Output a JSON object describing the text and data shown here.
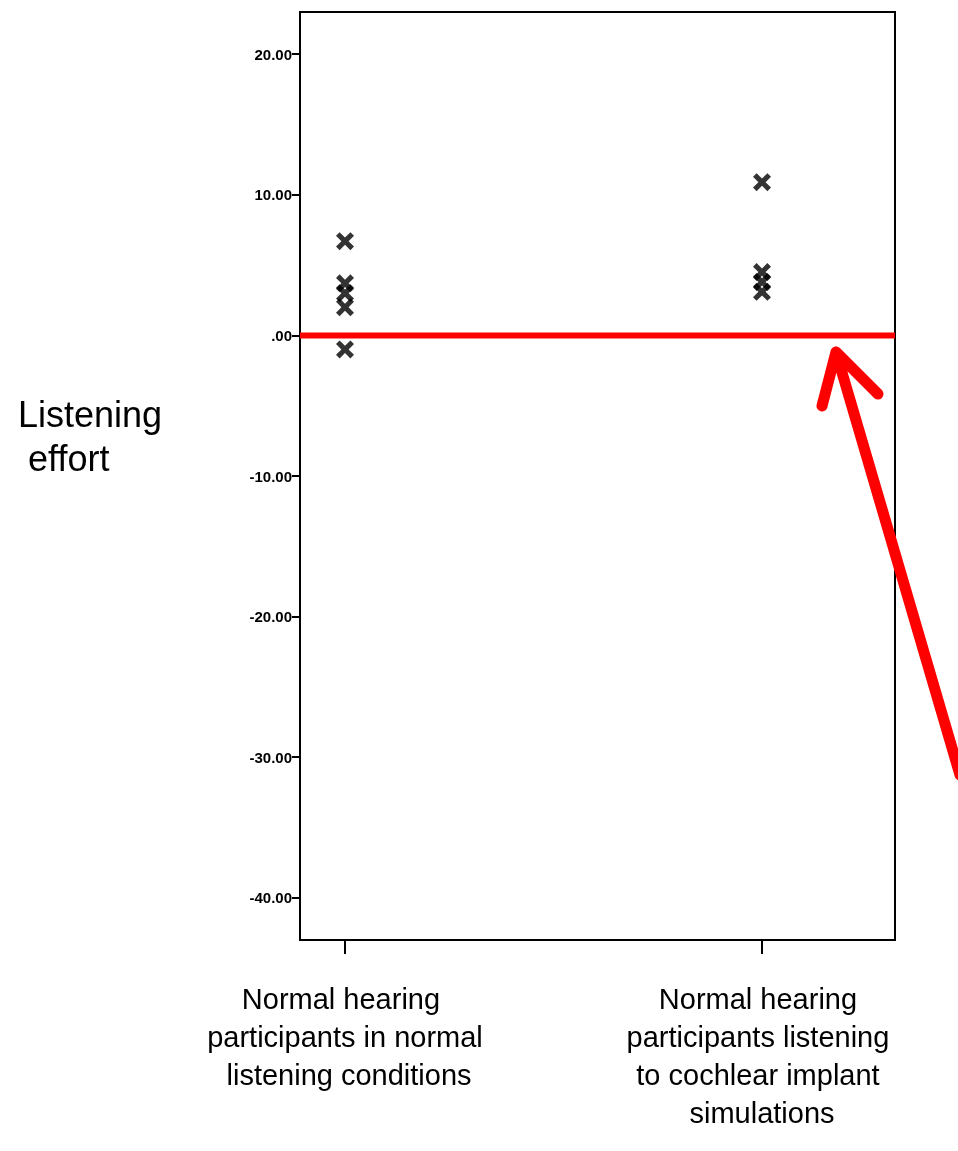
{
  "chart_data": {
    "type": "scatter",
    "ylabel": "Listening effort",
    "categories": [
      "Normal hearing participants in normal listening conditions",
      "Normal hearing participants listening to cochlear implant simulations"
    ],
    "series": [
      {
        "color": "#000000",
        "x": [
          "Normal hearing participants in normal listening conditions",
          "Normal hearing participants in normal listening conditions",
          "Normal hearing participants in normal listening conditions",
          "Normal hearing participants in normal listening conditions",
          "Normal hearing participants in normal listening conditions",
          "Normal hearing participants listening to cochlear implant simulations",
          "Normal hearing participants listening to cochlear implant simulations",
          "Normal hearing participants listening to cochlear implant simulations",
          "Normal hearing participants listening to cochlear implant simulations"
        ],
        "values": [
          6.7,
          3.7,
          3.0,
          2.0,
          -1.0,
          10.9,
          4.5,
          3.8,
          3.1
        ]
      }
    ],
    "ylim": [
      -43,
      23
    ],
    "yticks": [
      {
        "value": -40,
        "label": "-40.00"
      },
      {
        "value": -30,
        "label": "-30.00"
      },
      {
        "value": -20,
        "label": "-20.00"
      },
      {
        "value": -10,
        "label": "-10.00"
      },
      {
        "value": 0,
        "label": ".00"
      },
      {
        "value": 10,
        "label": "10.00"
      },
      {
        "value": 20,
        "label": "20.00"
      }
    ],
    "marker": "cross",
    "grid": false,
    "ref_lines": [
      {
        "axis": "y",
        "value": 0,
        "color": "#ff0000"
      }
    ]
  }
}
